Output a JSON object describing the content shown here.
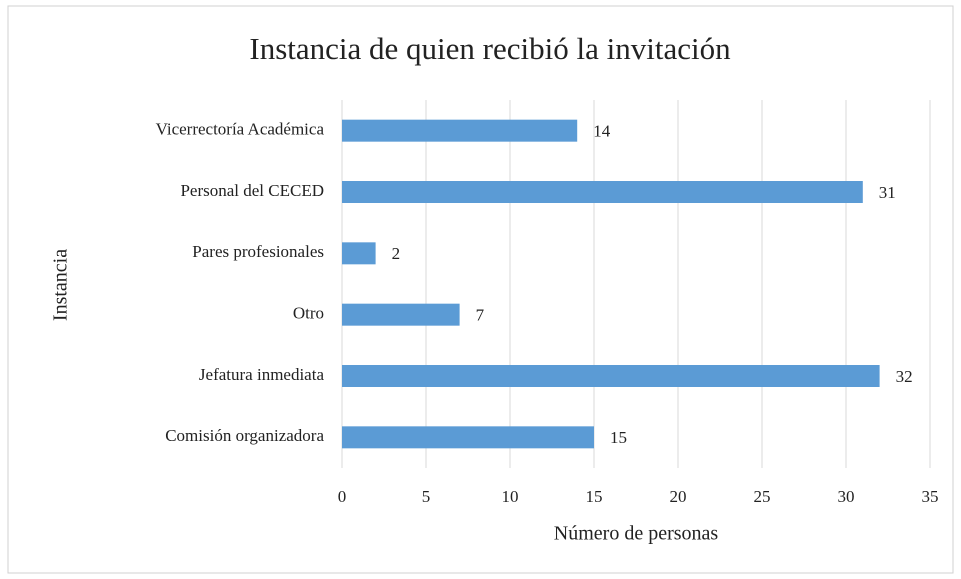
{
  "chart_data": {
    "type": "bar",
    "orientation": "horizontal",
    "title": "Instancia de quien recibió la invitación",
    "x_label": "Número de personas",
    "y_label": "Instancia",
    "categories": [
      "Vicerrectoría Académica",
      "Personal del CECED",
      "Pares profesionales",
      "Otro",
      "Jefatura inmediata",
      "Comisión organizadora"
    ],
    "values": [
      14,
      31,
      2,
      7,
      32,
      15
    ],
    "color": "#5b9bd5",
    "xlim": [
      0,
      35
    ],
    "xticks": [
      0,
      5,
      10,
      15,
      20,
      25,
      30,
      35
    ],
    "grid": true
  }
}
